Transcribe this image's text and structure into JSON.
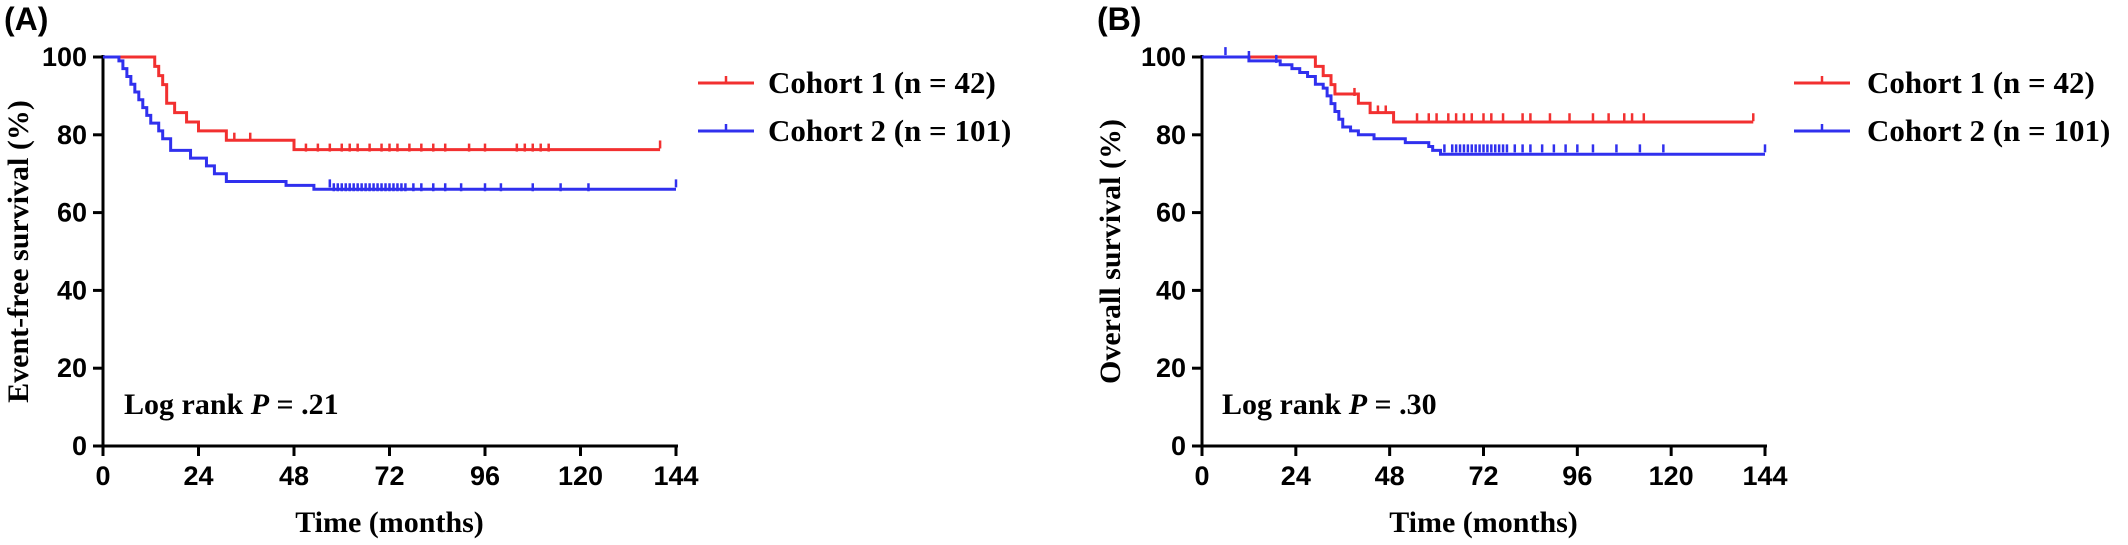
{
  "chart_data": [
    {
      "type": "line",
      "panel_label": "(A)",
      "xlabel": "Time (months)",
      "ylabel": "Event-free survival (%)",
      "xlim": [
        0,
        144
      ],
      "ylim": [
        0,
        100
      ],
      "xticks": [
        0,
        24,
        48,
        72,
        96,
        120,
        144
      ],
      "yticks": [
        0,
        20,
        40,
        60,
        80,
        100
      ],
      "annotation": {
        "prefix": "Log rank ",
        "p": "P",
        "suffix": " = .21"
      },
      "legend": "top-right",
      "series": [
        {
          "name": "Cohort 1 (n = 42)",
          "color": "#f23030",
          "steps": [
            [
              0,
              100
            ],
            [
              12,
              100
            ],
            [
              13,
              97.6
            ],
            [
              14,
              95.2
            ],
            [
              15,
              92.9
            ],
            [
              16,
              88.1
            ],
            [
              18,
              85.7
            ],
            [
              21,
              83.3
            ],
            [
              24,
              81
            ],
            [
              31,
              78.6
            ],
            [
              48,
              76.2
            ],
            [
              140,
              76.2
            ]
          ],
          "censors": [
            [
              33,
              79
            ],
            [
              37,
              79
            ],
            [
              51,
              76.2
            ],
            [
              54,
              76.2
            ],
            [
              57,
              76.2
            ],
            [
              60,
              76.2
            ],
            [
              62,
              76.2
            ],
            [
              64,
              76.2
            ],
            [
              67,
              76.2
            ],
            [
              70,
              76.2
            ],
            [
              72,
              76.2
            ],
            [
              74,
              76.2
            ],
            [
              77,
              76.2
            ],
            [
              80,
              76.2
            ],
            [
              83,
              76.2
            ],
            [
              86,
              76.2
            ],
            [
              92,
              76.2
            ],
            [
              96,
              76.2
            ],
            [
              104,
              76.2
            ],
            [
              106,
              76.2
            ],
            [
              108,
              76.2
            ],
            [
              110,
              76.2
            ],
            [
              112,
              76.2
            ],
            [
              140,
              77
            ]
          ]
        },
        {
          "name": "Cohort 2 (n = 101)",
          "color": "#3030ee",
          "steps": [
            [
              0,
              100
            ],
            [
              3,
              100
            ],
            [
              4,
              99
            ],
            [
              5,
              97
            ],
            [
              6,
              95
            ],
            [
              7,
              93
            ],
            [
              8,
              91
            ],
            [
              9,
              89
            ],
            [
              10,
              87
            ],
            [
              11,
              85
            ],
            [
              12,
              83
            ],
            [
              14,
              81
            ],
            [
              15,
              79
            ],
            [
              17,
              76
            ],
            [
              22,
              74
            ],
            [
              26,
              72
            ],
            [
              28,
              70
            ],
            [
              31,
              68
            ],
            [
              46,
              67
            ],
            [
              53,
              66
            ],
            [
              144,
              66
            ]
          ],
          "censors": [
            [
              57,
              67
            ],
            [
              58,
              66
            ],
            [
              59,
              66
            ],
            [
              60,
              66
            ],
            [
              61,
              66
            ],
            [
              62,
              66
            ],
            [
              63,
              66
            ],
            [
              64,
              66
            ],
            [
              65,
              66
            ],
            [
              66,
              66
            ],
            [
              67,
              66
            ],
            [
              68,
              66
            ],
            [
              69,
              66
            ],
            [
              70,
              66
            ],
            [
              71,
              66
            ],
            [
              72,
              66
            ],
            [
              73,
              66
            ],
            [
              74,
              66
            ],
            [
              75,
              66
            ],
            [
              76,
              66
            ],
            [
              78,
              66
            ],
            [
              80,
              66
            ],
            [
              83,
              66
            ],
            [
              86,
              66
            ],
            [
              90,
              66
            ],
            [
              96,
              66
            ],
            [
              100,
              66
            ],
            [
              108,
              66
            ],
            [
              115,
              66
            ],
            [
              122,
              66
            ],
            [
              144,
              67
            ]
          ]
        }
      ]
    },
    {
      "type": "line",
      "panel_label": "(B)",
      "xlabel": "Time (months)",
      "ylabel": "Overall survival (%)",
      "xlim": [
        0,
        144
      ],
      "ylim": [
        0,
        100
      ],
      "xticks": [
        0,
        24,
        48,
        72,
        96,
        120,
        144
      ],
      "yticks": [
        0,
        20,
        40,
        60,
        80,
        100
      ],
      "annotation": {
        "prefix": "Log rank ",
        "p": "P",
        "suffix": " = .30"
      },
      "legend": "top-right",
      "series": [
        {
          "name": "Cohort 1 (n = 42)",
          "color": "#f23030",
          "steps": [
            [
              0,
              100
            ],
            [
              27,
              100
            ],
            [
              29,
              97.6
            ],
            [
              31,
              95.2
            ],
            [
              33,
              92.9
            ],
            [
              34,
              90.5
            ],
            [
              40,
              88.1
            ],
            [
              43,
              85.7
            ],
            [
              49,
              83.3
            ],
            [
              141,
              83.3
            ]
          ],
          "censors": [
            [
              39,
              90.5
            ],
            [
              45,
              86
            ],
            [
              47,
              86
            ],
            [
              55,
              84
            ],
            [
              58,
              84
            ],
            [
              60,
              84
            ],
            [
              63,
              84
            ],
            [
              65,
              84
            ],
            [
              67,
              84
            ],
            [
              69,
              84
            ],
            [
              72,
              84
            ],
            [
              74,
              84
            ],
            [
              77,
              84
            ],
            [
              82,
              84
            ],
            [
              84,
              84
            ],
            [
              89,
              84
            ],
            [
              94,
              84
            ],
            [
              100,
              84
            ],
            [
              104,
              84
            ],
            [
              108,
              84
            ],
            [
              110,
              84
            ],
            [
              113,
              84
            ],
            [
              141,
              84
            ]
          ]
        },
        {
          "name": "Cohort 2 (n = 101)",
          "color": "#3030ee",
          "steps": [
            [
              0,
              100
            ],
            [
              11,
              100
            ],
            [
              12,
              99
            ],
            [
              20,
              98
            ],
            [
              23,
              97
            ],
            [
              25,
              96
            ],
            [
              27,
              95
            ],
            [
              29,
              93
            ],
            [
              31,
              92
            ],
            [
              32,
              90
            ],
            [
              33,
              88
            ],
            [
              34,
              86
            ],
            [
              35,
              84
            ],
            [
              36,
              82
            ],
            [
              38,
              81
            ],
            [
              40,
              80
            ],
            [
              44,
              79
            ],
            [
              52,
              78
            ],
            [
              58,
              77
            ],
            [
              59,
              76
            ],
            [
              61,
              75
            ],
            [
              144,
              75
            ]
          ],
          "censors": [
            [
              6,
              101
            ],
            [
              12,
              100
            ],
            [
              19,
              99
            ],
            [
              62,
              76
            ],
            [
              64,
              76
            ],
            [
              65,
              76
            ],
            [
              66,
              76
            ],
            [
              67,
              76
            ],
            [
              68,
              76
            ],
            [
              69,
              76
            ],
            [
              70,
              76
            ],
            [
              71,
              76
            ],
            [
              72,
              76
            ],
            [
              73,
              76
            ],
            [
              74,
              76
            ],
            [
              75,
              76
            ],
            [
              76,
              76
            ],
            [
              77,
              76
            ],
            [
              78,
              76
            ],
            [
              80,
              76
            ],
            [
              82,
              76
            ],
            [
              84,
              76
            ],
            [
              87,
              76
            ],
            [
              90,
              76
            ],
            [
              93,
              76
            ],
            [
              96,
              76
            ],
            [
              100,
              76
            ],
            [
              106,
              76
            ],
            [
              112,
              76
            ],
            [
              118,
              76
            ],
            [
              144,
              76
            ]
          ]
        }
      ]
    }
  ]
}
